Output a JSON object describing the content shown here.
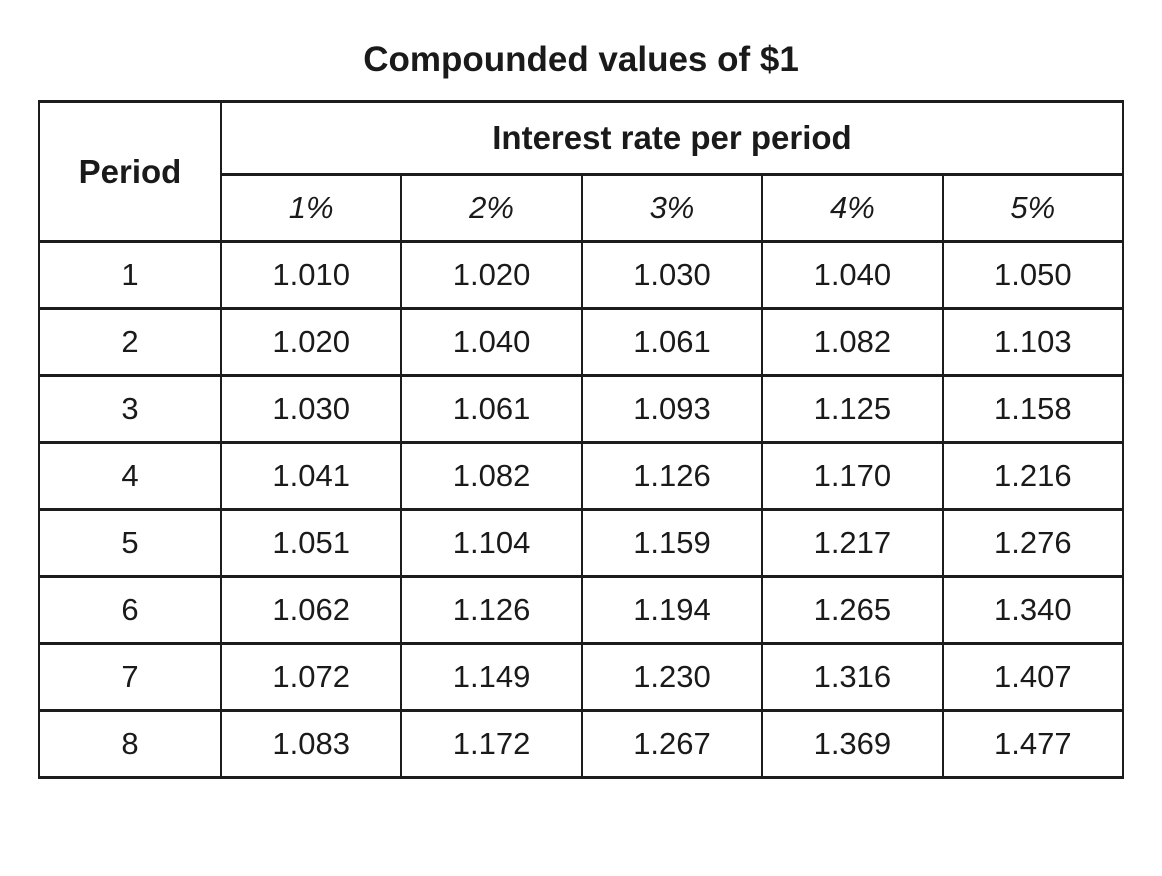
{
  "page_title": "Compounded values of $1",
  "table": {
    "period_header": "Period",
    "group_header": "Interest rate per period",
    "rate_headers": [
      "1%",
      "2%",
      "3%",
      "4%",
      "5%"
    ],
    "rows": [
      {
        "period": "1",
        "values": [
          "1.010",
          "1.020",
          "1.030",
          "1.040",
          "1.050"
        ]
      },
      {
        "period": "2",
        "values": [
          "1.020",
          "1.040",
          "1.061",
          "1.082",
          "1.103"
        ]
      },
      {
        "period": "3",
        "values": [
          "1.030",
          "1.061",
          "1.093",
          "1.125",
          "1.158"
        ]
      },
      {
        "period": "4",
        "values": [
          "1.041",
          "1.082",
          "1.126",
          "1.170",
          "1.216"
        ]
      },
      {
        "period": "5",
        "values": [
          "1.051",
          "1.104",
          "1.159",
          "1.217",
          "1.276"
        ]
      },
      {
        "period": "6",
        "values": [
          "1.062",
          "1.126",
          "1.194",
          "1.265",
          "1.340"
        ]
      },
      {
        "period": "7",
        "values": [
          "1.072",
          "1.149",
          "1.230",
          "1.316",
          "1.407"
        ]
      },
      {
        "period": "8",
        "values": [
          "1.083",
          "1.172",
          "1.267",
          "1.369",
          "1.477"
        ]
      }
    ]
  },
  "colors": {
    "text": "#1a1a1a",
    "border": "#1c1c1c",
    "background": "#ffffff"
  }
}
